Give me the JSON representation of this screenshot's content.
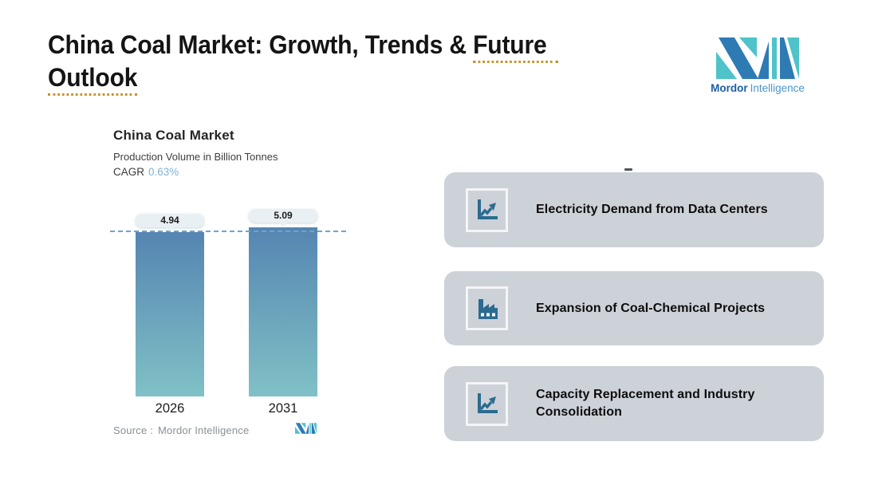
{
  "header": {
    "title_part1": "China Coal Market: Growth, Trends & ",
    "title_underlined_word": "Future",
    "title_line2_underlined_word": "Outlook"
  },
  "brand": {
    "word1": "Mordor",
    "word2": "Intelligence"
  },
  "chart": {
    "title": "China Coal Market",
    "subtitle": "Production Volume in Billion Tonnes",
    "cagr_label": "CAGR",
    "cagr_value": "0.63%",
    "source_label": "Source :",
    "source_name": "Mordor Intelligence"
  },
  "chart_data": {
    "type": "bar",
    "title": "China Coal Market",
    "subtitle": "Production Volume in Billion Tonnes",
    "ylabel": "Production Volume",
    "unit": "Billion Tonnes",
    "cagr_percent": 0.63,
    "categories": [
      "2026",
      "2031"
    ],
    "values": [
      4.94,
      5.09
    ],
    "value_labels": [
      "4.94",
      "5.09"
    ],
    "reference_line": {
      "at_value": 4.94,
      "style": "dashed"
    },
    "grid": false,
    "legend": "none",
    "bar_gradient": [
      "#5585B1",
      "#80C1C6"
    ]
  },
  "cards": [
    {
      "icon": "line-chart-icon",
      "label": "Electricity Demand from Data Centers"
    },
    {
      "icon": "factory-icon",
      "label": "Expansion of Coal-Chemical Projects"
    },
    {
      "icon": "line-chart-icon",
      "label": "Capacity Replacement and Industry Consolidation"
    }
  ],
  "colors": {
    "accent_gold": "#C9922C",
    "brand_teal": "#4EC3C9",
    "brand_blue": "#2E7BB4",
    "card_bg": "#CDD1D8",
    "icon_blue": "#2B6B90",
    "cagr_value_blue": "#7FB2D9",
    "dashed_line_blue": "#6FA3CC",
    "pill_bg": "#E9F0F3",
    "source_gray": "#8A8F94"
  }
}
